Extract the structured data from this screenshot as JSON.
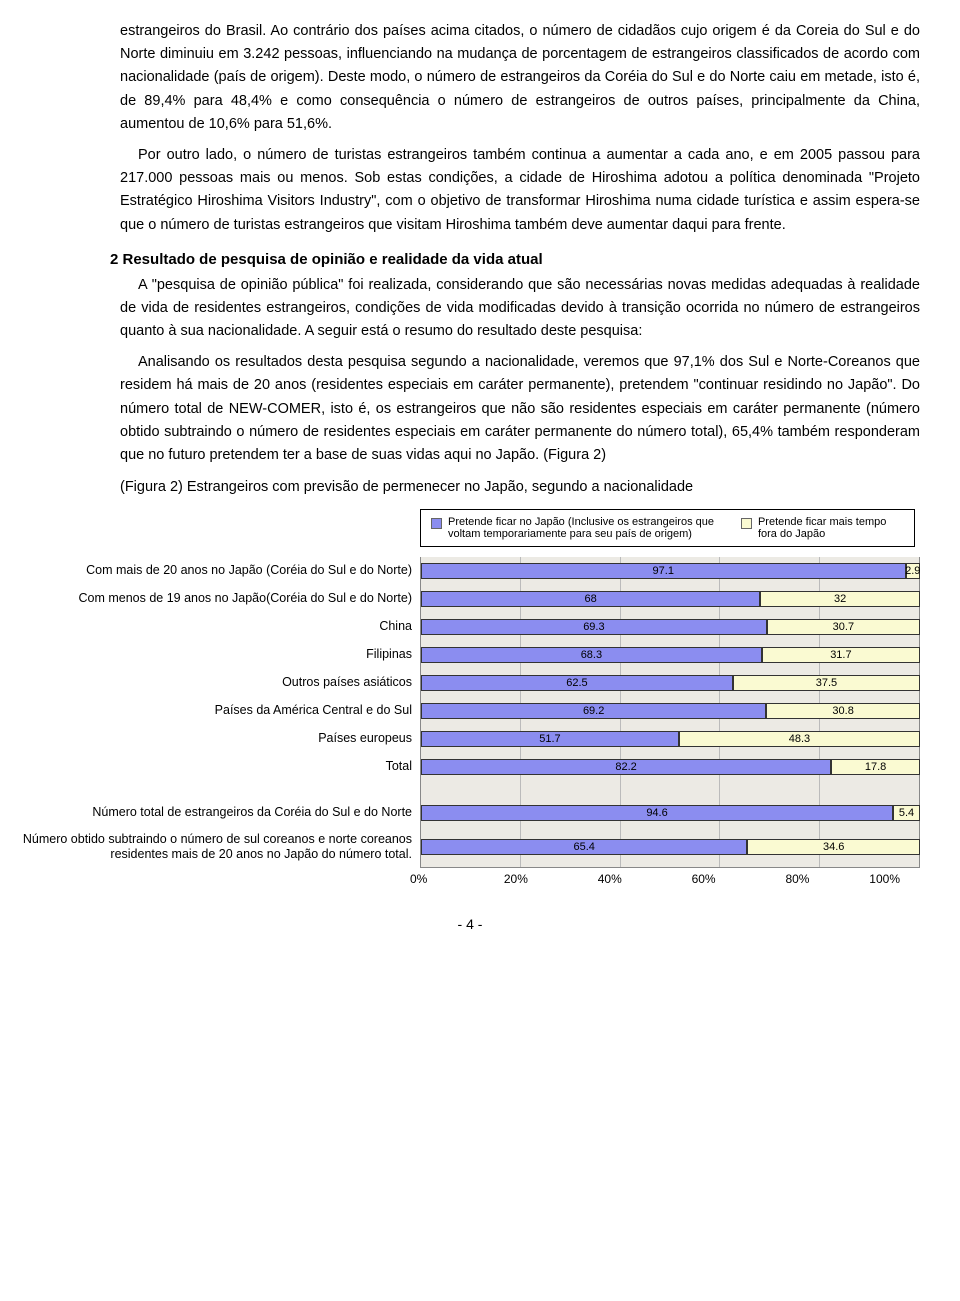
{
  "paragraphs": {
    "p1": "estrangeiros do Brasil. Ao contrário dos países acima citados, o número de cidadãos cujo origem é da Coreia do Sul e do Norte diminuiu em 3.242 pessoas, influenciando na mudança de porcentagem de estrangeiros classificados de acordo com nacionalidade (país de origem). Deste modo, o número de estrangeiros da Coréia do Sul e do Norte caiu em metade, isto é, de 89,4% para 48,4% e como consequência o número de estrangeiros de outros países, principalmente da China, aumentou de 10,6% para 51,6%.",
    "p2": "Por outro lado, o número de turistas estrangeiros também continua a aumentar a cada ano, e em 2005 passou para 217.000 pessoas mais ou menos. Sob estas condições, a cidade de Hiroshima adotou a política denominada \"Projeto Estratégico Hiroshima Visitors Industry\",   com o objetivo de transformar Hiroshima numa cidade turística e assim espera-se que o número de turistas estrangeiros que visitam Hiroshima também deve aumentar daqui para frente.",
    "heading2": "2  Resultado de pesquisa de opinião e realidade da vida atual",
    "p3": "A \"pesquisa de opinião pública\" foi realizada, considerando que são necessárias novas medidas adequadas à realidade de vida de residentes estrangeiros, condições de vida modificadas devido à transição ocorrida no número de estrangeiros quanto à sua nacionalidade.   A seguir está o resumo do resultado deste pesquisa:",
    "p4": "Analisando os resultados desta pesquisa segundo a nacionalidade, veremos que 97,1% dos Sul e Norte-Coreanos que residem há mais de 20 anos (residentes especiais em caráter permanente), pretendem \"continuar residindo no Japão\". Do número total de NEW-COMER, isto é, os estrangeiros que não são residentes especiais em caráter permanente (número obtido subtraindo o número de residentes especiais em caráter permanente do número total), 65,4% também responderam que no futuro pretendem ter a base de suas vidas aqui no Japão. (Figura 2)",
    "figlabel": "(Figura 2) Estrangeiros com previsão de permenecer no Japão, segundo a nacionalidade"
  },
  "legend": {
    "item1": "Pretende ficar no Japão (Inclusive os estrangeiros que voltam temporariamente para seu país de origem)",
    "item2": "Pretende ficar mais tempo fora do Japão",
    "color1": "#8b8df0",
    "color2": "#fafad2"
  },
  "chart": {
    "type": "stacked-horizontal-bar",
    "background_color": "#eceae4",
    "grid_color": "#bbbbbb",
    "bar_colors": [
      "#8b8df0",
      "#fafad2"
    ],
    "xlim": [
      0,
      100
    ],
    "xtick_step": 20,
    "xticks": [
      "0%",
      "20%",
      "40%",
      "60%",
      "80%",
      "100%"
    ],
    "rows": [
      {
        "label": "Com mais de 20 anos no Japão (Coréia do Sul e do Norte)",
        "a": 97.1,
        "b": 2.9
      },
      {
        "label": "Com menos de 19 anos no Japão(Coréia do Sul e do Norte)",
        "a": 68,
        "b": 32.0
      },
      {
        "label": "China",
        "a": 69.3,
        "b": 30.7
      },
      {
        "label": "Filipinas",
        "a": 68.3,
        "b": 31.7
      },
      {
        "label": "Outros países asiáticos",
        "a": 62.5,
        "b": 37.5
      },
      {
        "label": "Países da América Central e do Sul",
        "a": 69.2,
        "b": 30.8
      },
      {
        "label": "Países europeus",
        "a": 51.7,
        "b": 48.3
      },
      {
        "label": "Total",
        "a": 82.2,
        "b": 17.8
      }
    ],
    "rows2": [
      {
        "label": "Número total de estrangeiros da Coréia do Sul e do Norte",
        "a": 94.6,
        "b": 5.4
      },
      {
        "label": "Número obtido subtraindo o número de sul coreanos e norte coreanos residentes mais de 20 anos no Japão do número total.",
        "a": 65.4,
        "b": 34.6
      }
    ]
  },
  "page_number": "- 4 -"
}
